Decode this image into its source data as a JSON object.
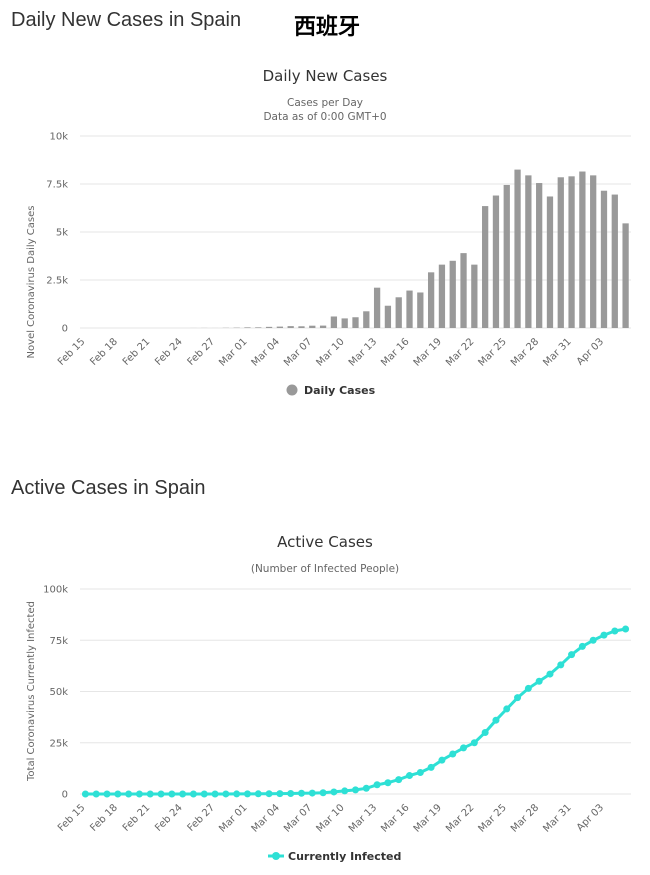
{
  "header": {
    "daily_section_title": "Daily New Cases in Spain",
    "country_cjk": "西班牙",
    "active_section_title": "Active Cases in Spain"
  },
  "chart_data": [
    {
      "type": "bar",
      "title": "Daily New Cases",
      "subtitle": [
        "Cases per Day",
        "Data as of 0:00 GMT+0"
      ],
      "ylabel": "Novel Coronavirus Daily Cases",
      "ylim": [
        0,
        10000
      ],
      "yticks": [
        0,
        2500,
        5000,
        7500,
        10000
      ],
      "ytick_labels": [
        "0",
        "2.5k",
        "5k",
        "7.5k",
        "10k"
      ],
      "grid": true,
      "legend": {
        "position": "bottom-center",
        "label": "Daily Cases"
      },
      "color": "#999999",
      "categories": [
        "Feb 15",
        "Feb 16",
        "Feb 17",
        "Feb 18",
        "Feb 19",
        "Feb 20",
        "Feb 21",
        "Feb 22",
        "Feb 23",
        "Feb 24",
        "Feb 25",
        "Feb 26",
        "Feb 27",
        "Feb 28",
        "Feb 29",
        "Mar 01",
        "Mar 02",
        "Mar 03",
        "Mar 04",
        "Mar 05",
        "Mar 06",
        "Mar 07",
        "Mar 08",
        "Mar 09",
        "Mar 10",
        "Mar 11",
        "Mar 12",
        "Mar 13",
        "Mar 14",
        "Mar 15",
        "Mar 16",
        "Mar 17",
        "Mar 18",
        "Mar 19",
        "Mar 20",
        "Mar 21",
        "Mar 22",
        "Mar 23",
        "Mar 24",
        "Mar 25",
        "Mar 26",
        "Mar 27",
        "Mar 28",
        "Mar 29",
        "Mar 30",
        "Mar 31",
        "Apr 01",
        "Apr 02",
        "Apr 03",
        "Apr 04",
        "Apr 05"
      ],
      "tick_labels": [
        "Feb 15",
        "Feb 18",
        "Feb 21",
        "Feb 24",
        "Feb 27",
        "Mar 01",
        "Mar 04",
        "Mar 07",
        "Mar 10",
        "Mar 13",
        "Mar 16",
        "Mar 19",
        "Mar 22",
        "Mar 25",
        "Mar 28",
        "Mar 31",
        "Apr 03"
      ],
      "values": [
        0,
        0,
        0,
        0,
        0,
        0,
        0,
        0,
        0,
        0,
        2,
        4,
        1,
        10,
        17,
        33,
        34,
        60,
        73,
        98,
        89,
        120,
        125,
        600,
        500,
        560,
        870,
        2100,
        1160,
        1600,
        1950,
        1850,
        2900,
        3300,
        3500,
        3900,
        3300,
        6350,
        6900,
        7450,
        8250,
        7950,
        7550,
        6850,
        7850,
        7900,
        8150,
        7950,
        7150,
        6950,
        5450
      ]
    },
    {
      "type": "line",
      "title": "Active Cases",
      "subtitle": [
        "(Number of Infected People)"
      ],
      "ylabel": "Total Coronavirus Currently Infected",
      "ylim": [
        0,
        100000
      ],
      "yticks": [
        0,
        25000,
        50000,
        75000,
        100000
      ],
      "ytick_labels": [
        "0",
        "25k",
        "50k",
        "75k",
        "100k"
      ],
      "grid": true,
      "legend": {
        "position": "bottom-center",
        "label": "Currently Infected"
      },
      "color": "#2ee0d5",
      "categories": [
        "Feb 15",
        "Feb 16",
        "Feb 17",
        "Feb 18",
        "Feb 19",
        "Feb 20",
        "Feb 21",
        "Feb 22",
        "Feb 23",
        "Feb 24",
        "Feb 25",
        "Feb 26",
        "Feb 27",
        "Feb 28",
        "Feb 29",
        "Mar 01",
        "Mar 02",
        "Mar 03",
        "Mar 04",
        "Mar 05",
        "Mar 06",
        "Mar 07",
        "Mar 08",
        "Mar 09",
        "Mar 10",
        "Mar 11",
        "Mar 12",
        "Mar 13",
        "Mar 14",
        "Mar 15",
        "Mar 16",
        "Mar 17",
        "Mar 18",
        "Mar 19",
        "Mar 20",
        "Mar 21",
        "Mar 22",
        "Mar 23",
        "Mar 24",
        "Mar 25",
        "Mar 26",
        "Mar 27",
        "Mar 28",
        "Mar 29",
        "Mar 30",
        "Mar 31",
        "Apr 01",
        "Apr 02",
        "Apr 03",
        "Apr 04",
        "Apr 05"
      ],
      "tick_labels": [
        "Feb 15",
        "Feb 18",
        "Feb 21",
        "Feb 24",
        "Feb 27",
        "Mar 01",
        "Mar 04",
        "Mar 07",
        "Mar 10",
        "Mar 13",
        "Mar 16",
        "Mar 19",
        "Mar 22",
        "Mar 25",
        "Mar 28",
        "Mar 31",
        "Apr 03"
      ],
      "values": [
        2,
        2,
        2,
        2,
        2,
        2,
        2,
        2,
        2,
        2,
        4,
        8,
        10,
        20,
        40,
        70,
        100,
        150,
        200,
        260,
        350,
        450,
        600,
        1000,
        1500,
        2000,
        2800,
        4500,
        5500,
        7000,
        9000,
        10500,
        13000,
        16500,
        19500,
        22500,
        25000,
        30000,
        36000,
        41500,
        47000,
        51500,
        55000,
        58500,
        63000,
        68000,
        72000,
        75000,
        77500,
        79500,
        80500
      ]
    }
  ]
}
